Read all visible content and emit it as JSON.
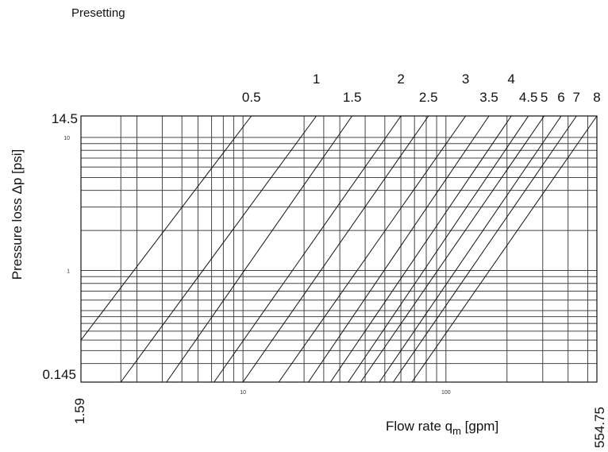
{
  "chart_data": {
    "type": "line",
    "title": "Presetting",
    "xlabel": "Flow rate q",
    "xlabel_sub": "m",
    "xlabel_unit": " [gpm]",
    "ylabel": "Pressure loss Δp [psi]",
    "x_scale": "log",
    "y_scale": "log",
    "xlim": [
      1.59,
      554.75
    ],
    "ylim": [
      0.145,
      14.5
    ],
    "x_end_labels": [
      "1.59",
      "554.75"
    ],
    "y_end_labels": [
      "14.5",
      "0.145"
    ],
    "x_decade_ticks": [
      {
        "value": 10,
        "label": "10"
      },
      {
        "value": 100,
        "label": "100"
      }
    ],
    "y_decade_ticks": [
      {
        "value": 10,
        "label": "10"
      },
      {
        "value": 1,
        "label": "1"
      }
    ],
    "grid": true,
    "series": [
      {
        "name": "0.5",
        "x": [
          1.59,
          11.0
        ],
        "y": [
          0.3,
          14.5
        ]
      },
      {
        "name": "1",
        "x": [
          2.5,
          23.0
        ],
        "y": [
          0.145,
          14.5
        ]
      },
      {
        "name": "1.5",
        "x": [
          4.2,
          34.5
        ],
        "y": [
          0.145,
          14.5
        ]
      },
      {
        "name": "2",
        "x": [
          7.2,
          60.0
        ],
        "y": [
          0.145,
          14.5
        ]
      },
      {
        "name": "2.5",
        "x": [
          10.0,
          82.0
        ],
        "y": [
          0.145,
          14.5
        ]
      },
      {
        "name": "3",
        "x": [
          15.0,
          125.0
        ],
        "y": [
          0.145,
          14.5
        ]
      },
      {
        "name": "3.5",
        "x": [
          21.0,
          163.0
        ],
        "y": [
          0.145,
          14.5
        ]
      },
      {
        "name": "4",
        "x": [
          27.0,
          210.0
        ],
        "y": [
          0.145,
          14.5
        ]
      },
      {
        "name": "4.5",
        "x": [
          33.0,
          255.0
        ],
        "y": [
          0.145,
          14.5
        ]
      },
      {
        "name": "5",
        "x": [
          38.0,
          305.0
        ],
        "y": [
          0.145,
          14.5
        ]
      },
      {
        "name": "6",
        "x": [
          47.0,
          370.0
        ],
        "y": [
          0.145,
          14.5
        ]
      },
      {
        "name": "7",
        "x": [
          55.0,
          440.0
        ],
        "y": [
          0.145,
          14.5
        ]
      },
      {
        "name": "8",
        "x": [
          68.0,
          554.75
        ],
        "y": [
          0.145,
          14.5
        ]
      }
    ],
    "x_gridlines": [
      2.5,
      3.0,
      4.0,
      5.0,
      6.0,
      7.0,
      8.0,
      9.0,
      10.0,
      20.0,
      25.0,
      30.0,
      40.0,
      50.0,
      60.0,
      70.0,
      80.0,
      90.0,
      100.0,
      200.0,
      300.0,
      400.0,
      500.0
    ],
    "y_gridlines": [
      0.2,
      0.25,
      0.3,
      0.35,
      0.4,
      0.45,
      0.5,
      0.6,
      0.7,
      0.8,
      0.9,
      1.0,
      2.0,
      3.0,
      4.0,
      5.0,
      6.0,
      7.0,
      8.0,
      9.0,
      10.0
    ]
  }
}
